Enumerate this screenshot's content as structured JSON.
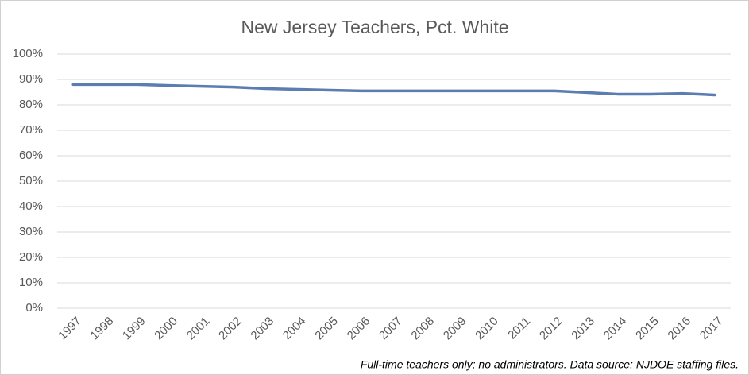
{
  "chart_data": {
    "type": "line",
    "title": "New Jersey Teachers, Pct. White",
    "categories": [
      "1997",
      "1998",
      "1999",
      "2000",
      "2001",
      "2002",
      "2003",
      "2004",
      "2005",
      "2006",
      "2007",
      "2008",
      "2009",
      "2010",
      "2011",
      "2012",
      "2013",
      "2014",
      "2015",
      "2016",
      "2017"
    ],
    "series": [
      {
        "name": "Pct. White",
        "color": "#5b7db1",
        "values": [
          88,
          88,
          88,
          87.6,
          87.3,
          87,
          86.4,
          86.1,
          85.8,
          85.5,
          85.5,
          85.5,
          85.5,
          85.5,
          85.5,
          85.5,
          84.9,
          84.2,
          84.2,
          84.5,
          83.9
        ]
      }
    ],
    "ylim": [
      0,
      100
    ],
    "yticks": [
      {
        "value": 0,
        "label": "0%"
      },
      {
        "value": 10,
        "label": "10%"
      },
      {
        "value": 20,
        "label": "20%"
      },
      {
        "value": 30,
        "label": "30%"
      },
      {
        "value": 40,
        "label": "40%"
      },
      {
        "value": 50,
        "label": "50%"
      },
      {
        "value": 60,
        "label": "60%"
      },
      {
        "value": 70,
        "label": "70%"
      },
      {
        "value": 80,
        "label": "80%"
      },
      {
        "value": 90,
        "label": "90%"
      },
      {
        "value": 100,
        "label": "100%"
      }
    ],
    "grid": true,
    "annotation": "Full-time teachers only; no administrators. Data source: NJDOE staffing files."
  }
}
